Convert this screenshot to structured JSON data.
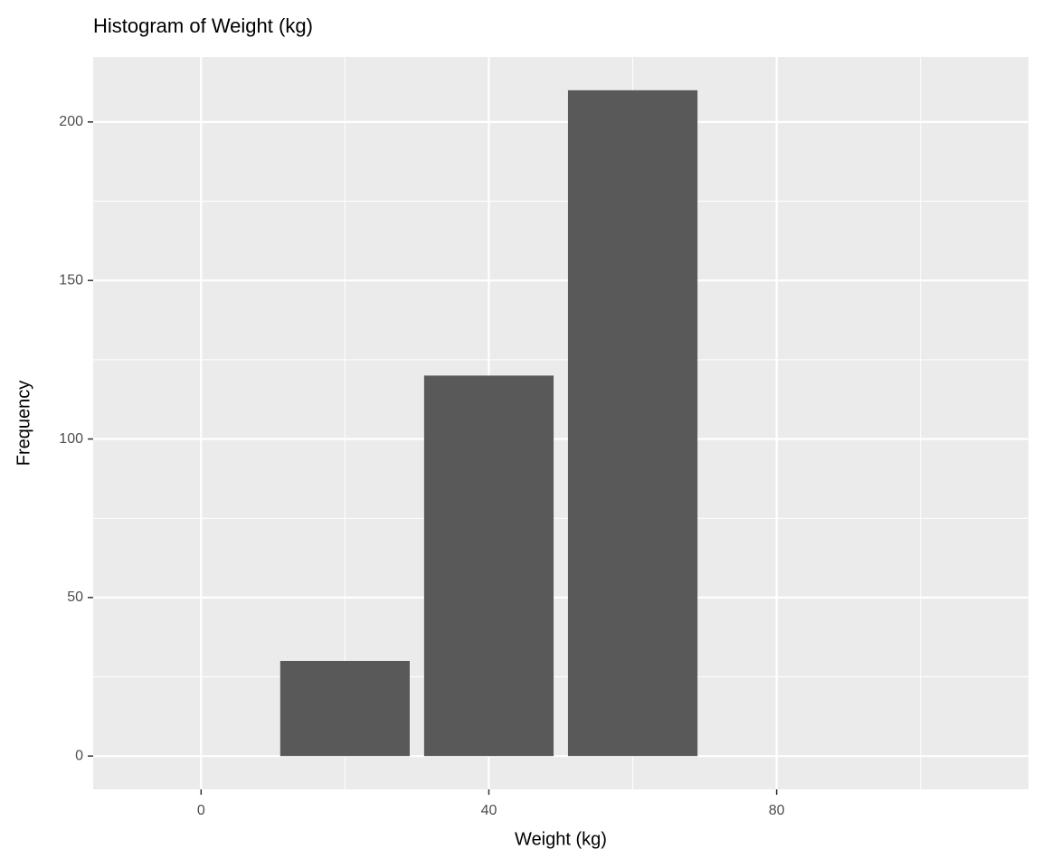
{
  "chart_data": {
    "type": "bar",
    "title": "Histogram of Weight (kg)",
    "x_label": "Weight (kg)",
    "y_label": "Frequency",
    "x": [
      20,
      40,
      60
    ],
    "values": [
      30,
      120,
      210
    ],
    "width": 18,
    "color": "#595959",
    "xlim": [
      -15,
      115
    ],
    "xticks": [
      0,
      40,
      80
    ],
    "minor_xticks": [
      20,
      60,
      100
    ],
    "ylim": [
      -10.5,
      220.5
    ],
    "yticks": [
      0,
      50,
      100,
      150,
      200
    ],
    "minor_yticks": [
      25,
      75,
      125,
      175
    ],
    "grid": true
  }
}
